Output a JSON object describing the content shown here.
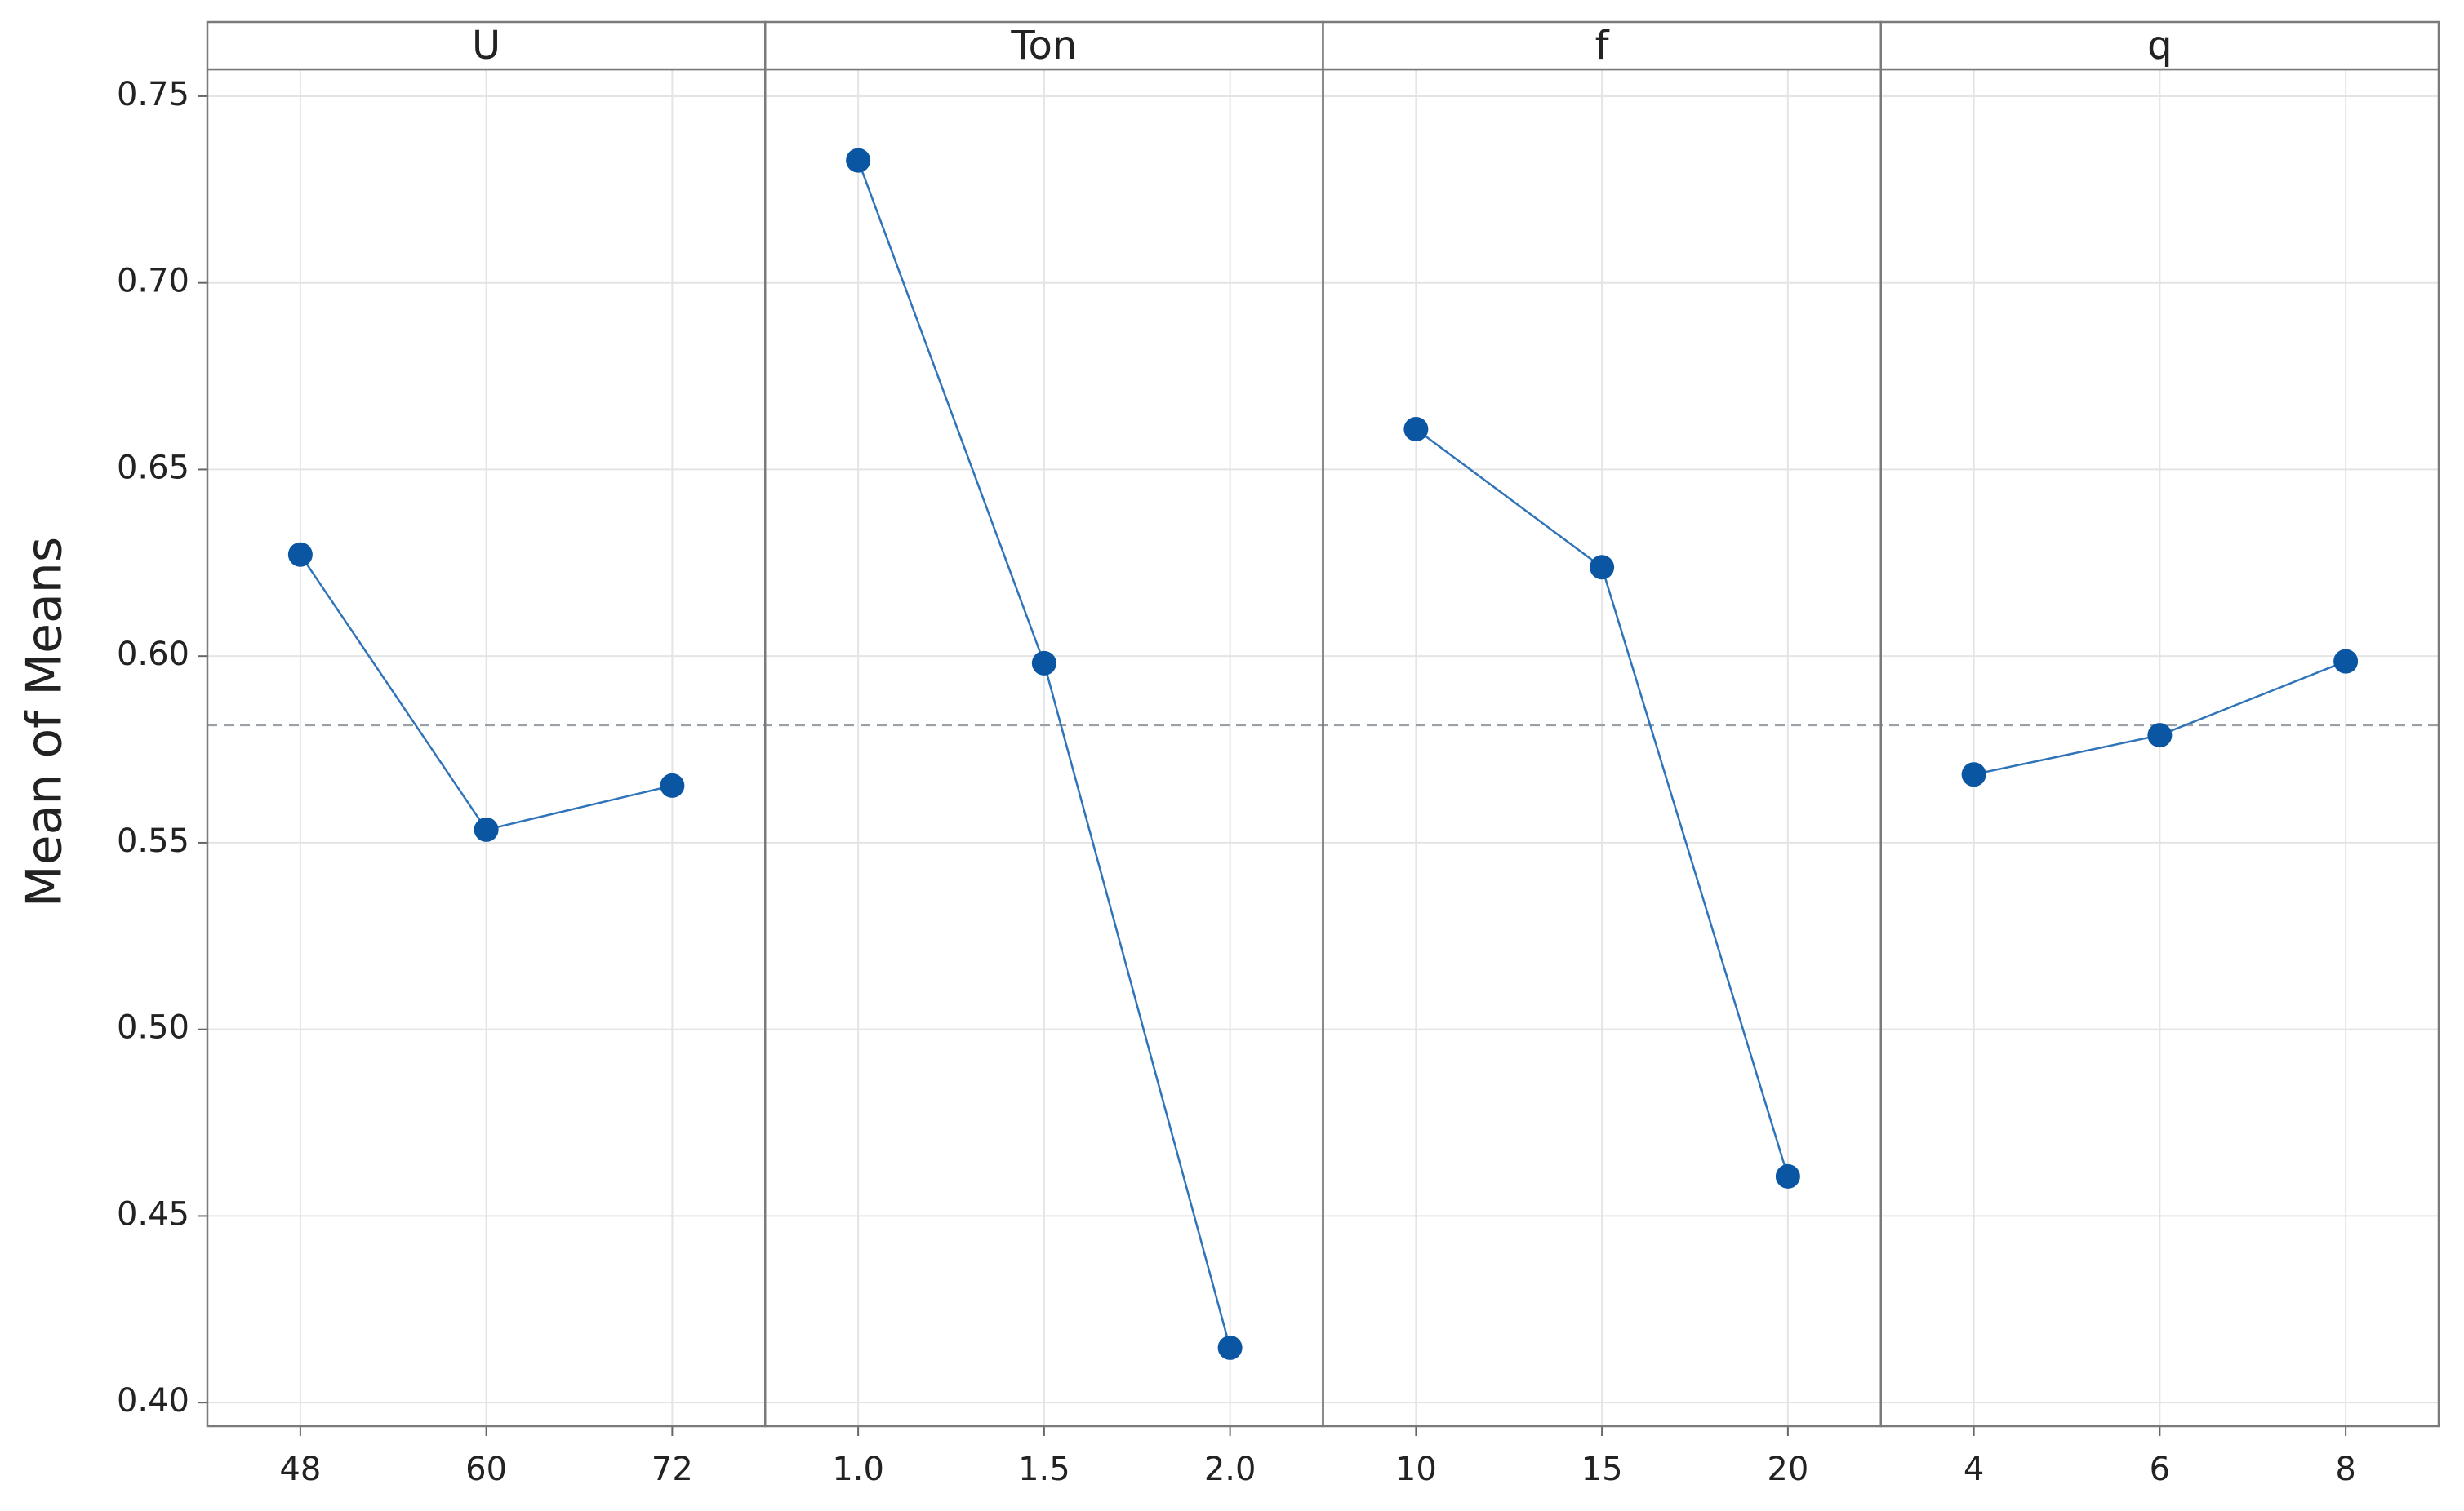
{
  "chart_data": {
    "type": "line",
    "y_label": "Mean of Means",
    "ylim": [
      0.3937,
      0.7572
    ],
    "yticks": [
      {
        "value": 0.4,
        "label": "0.40"
      },
      {
        "value": 0.45,
        "label": "0.45"
      },
      {
        "value": 0.5,
        "label": "0.50"
      },
      {
        "value": 0.55,
        "label": "0.55"
      },
      {
        "value": 0.6,
        "label": "0.60"
      },
      {
        "value": 0.65,
        "label": "0.65"
      },
      {
        "value": 0.7,
        "label": "0.70"
      },
      {
        "value": 0.75,
        "label": "0.75"
      }
    ],
    "grid": true,
    "color": "#0a56a3",
    "reference_line": 0.5815,
    "panels": [
      {
        "title": "U",
        "categories": [
          "48",
          "60",
          "72"
        ],
        "values": [
          0.6272,
          0.5535,
          0.5653
        ]
      },
      {
        "title": "Ton",
        "categories": [
          "1.0",
          "1.5",
          "2.0"
        ],
        "values": [
          0.7328,
          0.5981,
          0.4147
        ]
      },
      {
        "title": "f",
        "categories": [
          "10",
          "15",
          "20"
        ],
        "values": [
          0.6608,
          0.6238,
          0.4606
        ]
      },
      {
        "title": "q",
        "categories": [
          "4",
          "6",
          "8"
        ],
        "values": [
          0.5683,
          0.5788,
          0.5986
        ]
      }
    ]
  }
}
